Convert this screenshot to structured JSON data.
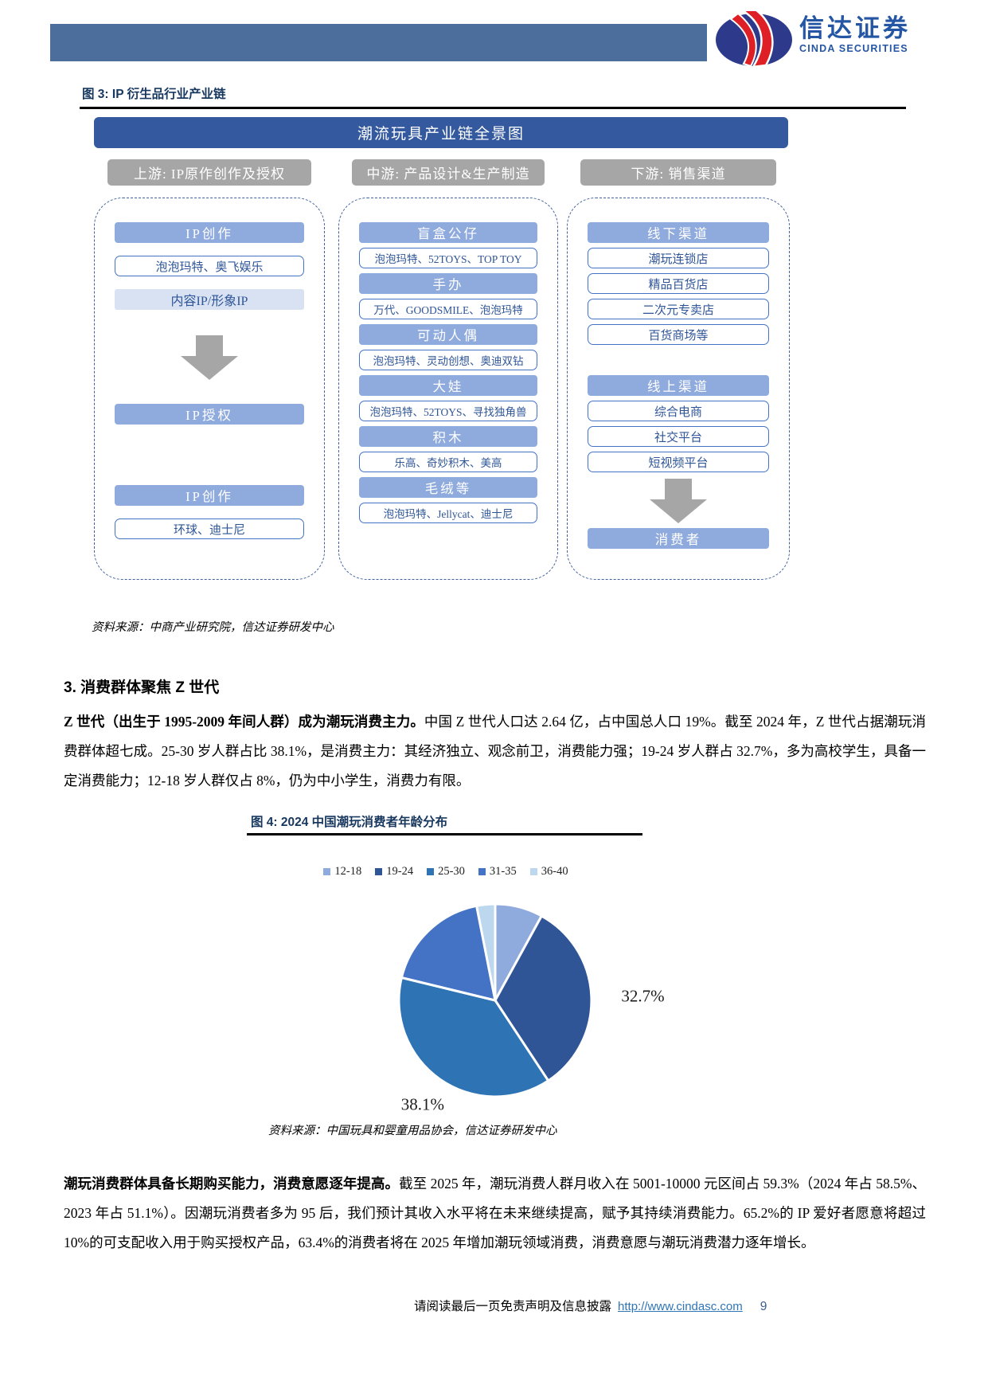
{
  "header": {
    "brand_cn": "信达证券",
    "brand_en": "CINDA SECURITIES"
  },
  "figure3": {
    "title": "图 3: IP 衍生品行业产业链",
    "banner": "潮流玩具产业链全景图",
    "columns": [
      {
        "header": "上游: IP原作创作及授权",
        "items": [
          {
            "type": "solid",
            "text": "IP创作"
          },
          {
            "type": "outline",
            "text": "泡泡玛特、奥飞娱乐"
          },
          {
            "type": "tint",
            "text": "内容IP/形象IP"
          },
          {
            "type": "arrow"
          },
          {
            "type": "solid",
            "text": "IP授权"
          },
          {
            "type": "spacer"
          },
          {
            "type": "solid",
            "text": "IP创作"
          },
          {
            "type": "outline",
            "text": "环球、迪士尼"
          }
        ]
      },
      {
        "header": "中游: 产品设计&生产制造",
        "items": [
          {
            "type": "solid",
            "text": "盲盒公仔"
          },
          {
            "type": "outline",
            "text": "泡泡玛特、52TOYS、TOP TOY"
          },
          {
            "type": "solid",
            "text": "手办"
          },
          {
            "type": "outline",
            "text": "万代、GOODSMILE、泡泡玛特"
          },
          {
            "type": "solid",
            "text": "可动人偶"
          },
          {
            "type": "outline",
            "text": "泡泡玛特、灵动创想、奥迪双钻"
          },
          {
            "type": "solid",
            "text": "大娃"
          },
          {
            "type": "outline",
            "text": "泡泡玛特、52TOYS、寻找独角兽"
          },
          {
            "type": "solid",
            "text": "积木"
          },
          {
            "type": "outline",
            "text": "乐高、奇妙积木、美高"
          },
          {
            "type": "solid",
            "text": "毛绒等"
          },
          {
            "type": "outline",
            "text": "泡泡玛特、Jellycat、迪士尼"
          }
        ]
      },
      {
        "header": "下游: 销售渠道",
        "items": [
          {
            "type": "solid",
            "text": "线下渠道"
          },
          {
            "type": "outline",
            "text": "潮玩连锁店"
          },
          {
            "type": "outline",
            "text": "精品百货店"
          },
          {
            "type": "outline",
            "text": "二次元专卖店"
          },
          {
            "type": "outline",
            "text": "百货商场等"
          },
          {
            "type": "spacer"
          },
          {
            "type": "solid",
            "text": "线上渠道"
          },
          {
            "type": "outline",
            "text": "综合电商"
          },
          {
            "type": "outline",
            "text": "社交平台"
          },
          {
            "type": "outline",
            "text": "短视频平台"
          },
          {
            "type": "arrow"
          },
          {
            "type": "solid",
            "text": "消费者"
          }
        ]
      }
    ],
    "source": "资料来源：中商产业研究院，信达证券研发中心"
  },
  "section3": {
    "heading": "3. 消费群体聚焦 Z 世代",
    "para1_bold": "Z 世代（出生于 1995-2009 年间人群）成为潮玩消费主力。",
    "para1_rest": "中国 Z 世代人口达 2.64 亿，占中国总人口 19%。截至 2024 年，Z 世代占据潮玩消费群体超七成。25-30 岁人群占比 38.1%，是消费主力：其经济独立、观念前卫，消费能力强；19-24 岁人群占 32.7%，多为高校学生，具备一定消费能力；12-18 岁人群仅占 8%，仍为中小学生，消费力有限。"
  },
  "figure4": {
    "title": "图 4: 2024 中国潮玩消费者年龄分布",
    "source": "资料来源：中国玩具和婴童用品协会，信达证券研发中心"
  },
  "chart_data": {
    "type": "pie",
    "title": "2024 中国潮玩消费者年龄分布",
    "categories": [
      "12-18",
      "19-24",
      "25-30",
      "31-35",
      "36-40"
    ],
    "values": [
      8.0,
      32.7,
      38.1,
      18.1,
      3.1
    ],
    "labels": [
      "",
      "32.7%",
      "38.1%",
      "",
      ""
    ],
    "colors": [
      "#8FAADC",
      "#2F5597",
      "#2E74B5",
      "#4472C4",
      "#BDD7EE"
    ],
    "legend_position": "top",
    "start_angle_deg": 0,
    "direction": "clockwise"
  },
  "para2": {
    "bold": "潮玩消费群体具备长期购买能力，消费意愿逐年提高。",
    "rest": "截至 2025 年，潮玩消费人群月收入在 5001-10000 元区间占 59.3%（2024 年占 58.5%、2023 年占 51.1%）。因潮玩消费者多为 95 后，我们预计其收入水平将在未来继续提高，赋予其持续消费能力。65.2%的 IP 爱好者愿意将超过 10%的可支配收入用于购买授权产品，63.4%的消费者将在 2025 年增加潮玩领域消费，消费意愿与潮玩消费潜力逐年增长。"
  },
  "footer": {
    "disclaimer": "请阅读最后一页免责声明及信息披露",
    "link": "http://www.cindasc.com",
    "page": "9"
  },
  "theme": {
    "header_bar": "#4C6E9C",
    "banner_blue": "#34599E",
    "box_blue": "#8FAADC",
    "gray_header": "#A6A6A6",
    "link_blue": "#2E75B6"
  }
}
